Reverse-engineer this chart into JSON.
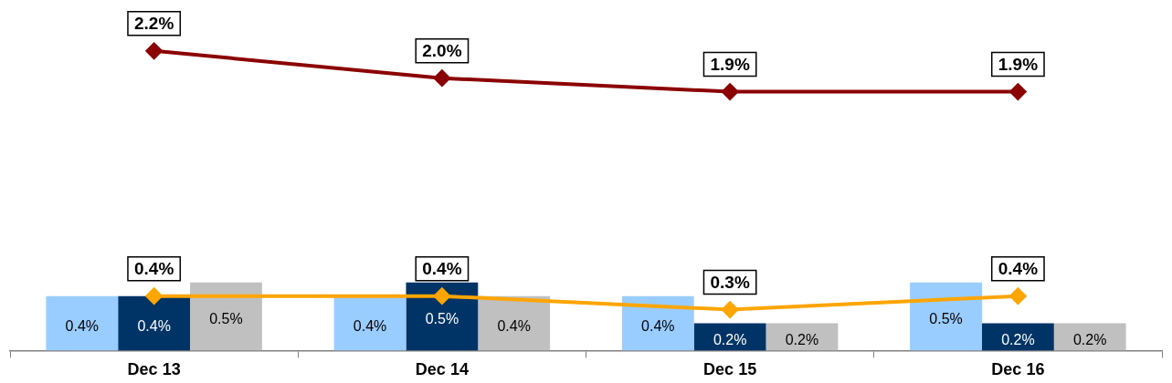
{
  "chart_data": {
    "type": "bar",
    "categories": [
      "Dec 13",
      "Dec 14",
      "Dec 15",
      "Dec 16"
    ],
    "series": [
      {
        "color": "#99ccff",
        "values": [
          0.4,
          0.4,
          0.4,
          0.5
        ],
        "value_labels": [
          "0.4%",
          "0.4%",
          "0.4%",
          "0.5%"
        ]
      },
      {
        "color": "#003366",
        "values": [
          0.4,
          0.5,
          0.2,
          0.2
        ],
        "value_labels": [
          "0.4%",
          "0.5%",
          "0.2%",
          "0.2%"
        ]
      },
      {
        "color": "#c0c0c0",
        "values": [
          0.5,
          0.4,
          0.2,
          0.2
        ],
        "value_labels": [
          "0.5%",
          "0.4%",
          "0.2%",
          "0.2%"
        ]
      },
      {
        "type": "line",
        "color": "#8b0000",
        "values": [
          2.2,
          2.0,
          1.9,
          1.9
        ],
        "value_labels": [
          "2.2%",
          "2.0%",
          "1.9%",
          "1.9%"
        ]
      },
      {
        "type": "line",
        "color": "#ffa500",
        "values": [
          0.4,
          0.4,
          0.3,
          0.4
        ],
        "value_labels": [
          "0.4%",
          "0.4%",
          "0.3%",
          "0.4%"
        ]
      }
    ],
    "marker": "diamond",
    "legend": false,
    "tick_labels": "x"
  }
}
